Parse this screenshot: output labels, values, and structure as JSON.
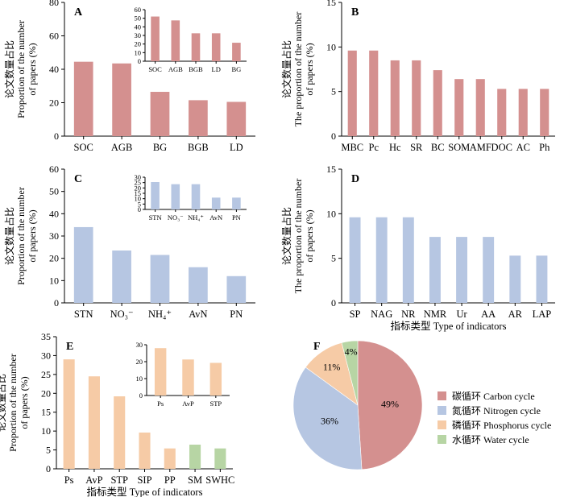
{
  "figure": {
    "colors": {
      "carbon": "#d4908f",
      "nitrogen": "#b6c6e2",
      "phosphorus": "#f6cba6",
      "water": "#b7d5a4"
    }
  },
  "chart_data": [
    {
      "id": "A",
      "panel": "A",
      "type": "bar",
      "categories": [
        "SOC",
        "AGB",
        "BG",
        "BGB",
        "LD"
      ],
      "values": [
        44.5,
        43.5,
        26.5,
        21.5,
        20.5
      ],
      "colors": [
        "#d4908f",
        "#d4908f",
        "#d4908f",
        "#d4908f",
        "#d4908f"
      ],
      "ylabel_cn": "论文数量占比",
      "ylabel_en": "Proportion of the number of papers (%)",
      "ylabel_en_lines": [
        "Proportion of the number",
        "of papers (%)"
      ],
      "ylim": [
        0,
        80
      ],
      "yticks": [
        0,
        20,
        40,
        60,
        80
      ],
      "inset": {
        "categories": [
          "SOC",
          "AGB",
          "BGB",
          "LD",
          "BG"
        ],
        "values": [
          52,
          47.5,
          32.5,
          32.5,
          21.5
        ],
        "ylim": [
          0,
          60
        ],
        "yticks": [
          0,
          10,
          20,
          30,
          40,
          50,
          60
        ]
      }
    },
    {
      "id": "B",
      "panel": "B",
      "type": "bar",
      "categories": [
        "MBC",
        "Pc",
        "Hc",
        "SR",
        "BC",
        "SOM",
        "AMF",
        "DOC",
        "AC",
        "Ph"
      ],
      "values": [
        9.6,
        9.6,
        8.5,
        8.5,
        7.4,
        6.4,
        6.4,
        5.3,
        5.3,
        5.3
      ],
      "colors": [
        "#d4908f",
        "#d4908f",
        "#d4908f",
        "#d4908f",
        "#d4908f",
        "#d4908f",
        "#d4908f",
        "#d4908f",
        "#d4908f",
        "#d4908f"
      ],
      "ylabel_cn": "论文数量占比",
      "ylabel_en": "The proportion of the number of papers (%)",
      "ylabel_en_lines": [
        "The proportion of the number",
        "of papers (%)"
      ],
      "ylim": [
        0,
        15
      ],
      "yticks": [
        0,
        5,
        10,
        15
      ]
    },
    {
      "id": "C",
      "panel": "C",
      "type": "bar",
      "categories": [
        "STN",
        "NO₃⁻",
        "NH₄⁺",
        "AvN",
        "PN"
      ],
      "values": [
        34,
        23.5,
        21.5,
        16,
        12
      ],
      "colors": [
        "#b6c6e2",
        "#b6c6e2",
        "#b6c6e2",
        "#b6c6e2",
        "#b6c6e2"
      ],
      "ylabel_cn": "论文数量占比",
      "ylabel_en": "Proportion of the number of papers (%)",
      "ylabel_en_lines": [
        "Proportion of the number",
        "of papers (%)"
      ],
      "ylim": [
        0,
        60
      ],
      "yticks": [
        0,
        10,
        20,
        30,
        40,
        50,
        60
      ],
      "inset": {
        "categories": [
          "STN",
          "NO₃⁻",
          "NH₄⁺",
          "AvN",
          "PN"
        ],
        "values": [
          25.5,
          23.5,
          23.5,
          11,
          11
        ],
        "ylim": [
          0,
          30
        ],
        "yticks": [
          0,
          5,
          10,
          15,
          20,
          25,
          30
        ]
      }
    },
    {
      "id": "D",
      "panel": "D",
      "type": "bar",
      "categories": [
        "SP",
        "NAG",
        "NR",
        "NMR",
        "Ur",
        "AA",
        "AR",
        "LAP"
      ],
      "values": [
        9.6,
        9.6,
        9.6,
        7.4,
        7.4,
        7.4,
        5.3,
        5.3
      ],
      "colors": [
        "#b6c6e2",
        "#b6c6e2",
        "#b6c6e2",
        "#b6c6e2",
        "#b6c6e2",
        "#b6c6e2",
        "#b6c6e2",
        "#b6c6e2"
      ],
      "ylabel_cn": "论文数量占比",
      "ylabel_en": "The proportion of the number of papers (%)",
      "ylabel_en_lines": [
        "The proportion of the number",
        "of papers (%)"
      ],
      "xlabel": "指标类型 Type of indicators",
      "ylim": [
        0,
        15
      ],
      "yticks": [
        0,
        5,
        10,
        15
      ]
    },
    {
      "id": "E",
      "panel": "E",
      "type": "bar",
      "categories": [
        "Ps",
        "AvP",
        "STP",
        "SIP",
        "PP",
        "SM",
        "SWHC"
      ],
      "values": [
        29,
        24.5,
        19.2,
        9.6,
        5.4,
        6.4,
        5.4
      ],
      "colors": [
        "#f6cba6",
        "#f6cba6",
        "#f6cba6",
        "#f6cba6",
        "#f6cba6",
        "#b7d5a4",
        "#b7d5a4"
      ],
      "ylabel_cn": "论文数量占比",
      "ylabel_en": "Proportion of the number of papers (%)",
      "ylabel_en_lines": [
        "Proportion of the number",
        "of papers (%)"
      ],
      "xlabel": "指标类型 Type of indicators",
      "ylim": [
        0,
        35
      ],
      "yticks": [
        0,
        5,
        10,
        15,
        20,
        25,
        30,
        35
      ],
      "inset": {
        "categories": [
          "Ps",
          "AvP",
          "STP"
        ],
        "values": [
          28,
          21.3,
          19.3
        ],
        "ylim": [
          0,
          30
        ],
        "yticks": [
          0,
          10,
          20,
          30
        ]
      }
    },
    {
      "id": "F",
      "panel": "F",
      "type": "pie",
      "slices": [
        {
          "label": "碳循环 Carbon cycle",
          "value": 49,
          "text": "49%",
          "color": "#d4908f"
        },
        {
          "label": "氮循环 Nitrogen cycle",
          "value": 36,
          "text": "36%",
          "color": "#b6c6e2"
        },
        {
          "label": "磷循环 Phosphorus cycle",
          "value": 11,
          "text": "11%",
          "color": "#f6cba6"
        },
        {
          "label": "水循环 Water cycle",
          "value": 4,
          "text": "4%",
          "color": "#b7d5a4"
        }
      ],
      "legend": "right"
    }
  ]
}
